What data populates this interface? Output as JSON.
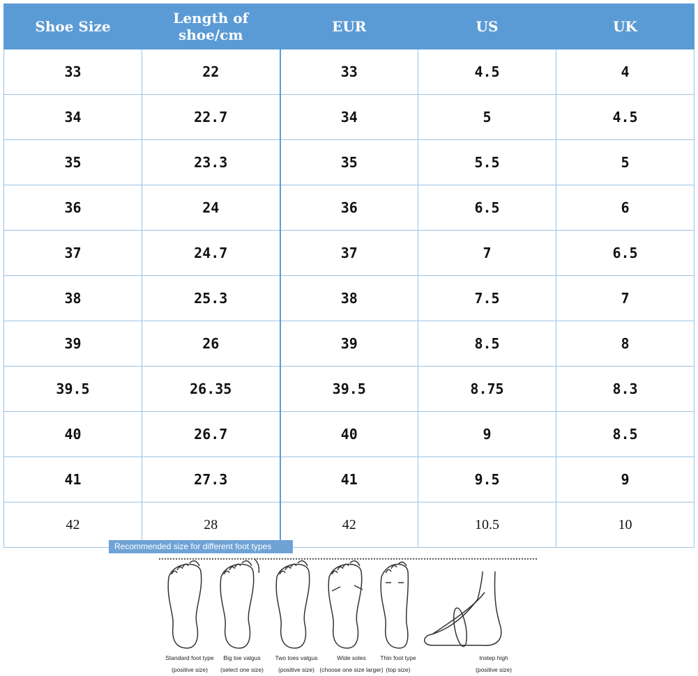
{
  "table": {
    "headers": [
      "Shoe Size",
      "Length of shoe/cm",
      "EUR",
      "US",
      "UK"
    ],
    "rows": [
      [
        "33",
        "22",
        "33",
        "4.5",
        "4"
      ],
      [
        "34",
        "22.7",
        "34",
        "5",
        "4.5"
      ],
      [
        "35",
        "23.3",
        "35",
        "5.5",
        "5"
      ],
      [
        "36",
        "24",
        "36",
        "6.5",
        "6"
      ],
      [
        "37",
        "24.7",
        "37",
        "7",
        "6.5"
      ],
      [
        "38",
        "25.3",
        "38",
        "7.5",
        "7"
      ],
      [
        "39",
        "26",
        "39",
        "8.5",
        "8"
      ],
      [
        "39.5",
        "26.35",
        "39.5",
        "8.75",
        "8.3"
      ],
      [
        "40",
        "26.7",
        "40",
        "9",
        "8.5"
      ],
      [
        "41",
        "27.3",
        "41",
        "9.5",
        "9"
      ],
      [
        "42",
        "28",
        "42",
        "10.5",
        "10"
      ]
    ]
  },
  "foot_types": {
    "title": "Recommended size for different foot types",
    "items": [
      {
        "name": "Standard foot type",
        "note": "(positive size)"
      },
      {
        "name": "Big toe valgus",
        "note": "(select one size)"
      },
      {
        "name": "Two toes valgus",
        "note": "(positive size)"
      },
      {
        "name": "Wide soles",
        "note": "(choose one size larger)"
      },
      {
        "name": "Thin foot type",
        "note": "(top size)"
      },
      {
        "name": "Instep high",
        "note": "(positive size)"
      }
    ]
  },
  "colors": {
    "header": "#5b9bd5",
    "grid": "#9dc3e6"
  }
}
